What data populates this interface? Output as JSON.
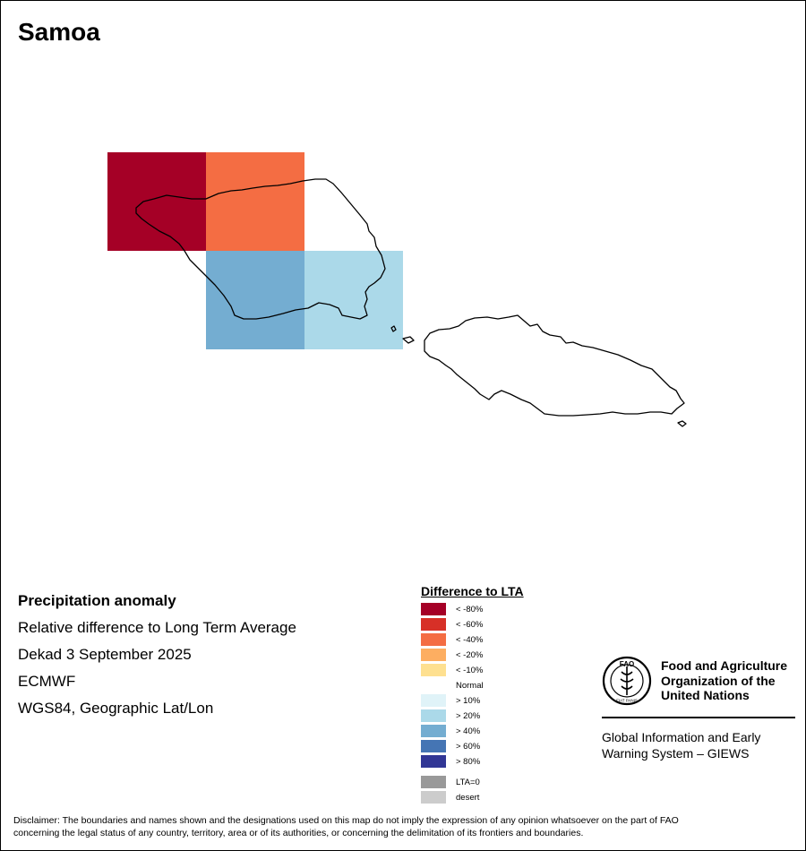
{
  "map": {
    "title": "Samoa",
    "grid_cells": [
      {
        "category": "< -80%",
        "color": "#a50026"
      },
      {
        "category": "< -40%",
        "color": "#f46d43"
      },
      {
        "category": "> 40%",
        "color": "#74add1"
      },
      {
        "category": "> 20%",
        "color": "#abd9e9"
      }
    ]
  },
  "info": {
    "heading": "Precipitation anomaly",
    "line1": "Relative difference to Long Term Average",
    "line2": "Dekad 3 September 2025",
    "line3": "ECMWF",
    "line4": "WGS84, Geographic Lat/Lon"
  },
  "legend": {
    "title": "Difference to LTA",
    "items": [
      {
        "label": "< -80%",
        "color": "#a50026"
      },
      {
        "label": "< -60%",
        "color": "#d73027"
      },
      {
        "label": "< -40%",
        "color": "#f46d43"
      },
      {
        "label": "< -20%",
        "color": "#fdae61"
      },
      {
        "label": "< -10%",
        "color": "#fee090"
      },
      {
        "label": "Normal",
        "color": "#ffffff"
      },
      {
        "label": "> 10%",
        "color": "#e0f3f8"
      },
      {
        "label": "> 20%",
        "color": "#abd9e9"
      },
      {
        "label": "> 40%",
        "color": "#74add1"
      },
      {
        "label": "> 60%",
        "color": "#4575b4"
      },
      {
        "label": "> 80%",
        "color": "#313695"
      }
    ],
    "extra": [
      {
        "label": "LTA=0",
        "color": "#999999"
      },
      {
        "label": "desert",
        "color": "#cccccc"
      }
    ]
  },
  "logo": {
    "org_line1": "Food and Agriculture",
    "org_line2": "Organization of the",
    "org_line3": "United Nations",
    "giews_line1": "Global Information and Early",
    "giews_line2": "Warning System – GIEWS",
    "emblem_text": "FAO",
    "motto": "FIAT PANIS"
  },
  "disclaimer": {
    "line1": "Disclaimer: The boundaries and names shown and the designations used on this map do not imply the expression of any opinion whatsoever on the part of FAO",
    "line2": "concerning the legal status of any country, territory, area or of its authorities, or concerning the delimitation of its frontiers and boundaries."
  }
}
